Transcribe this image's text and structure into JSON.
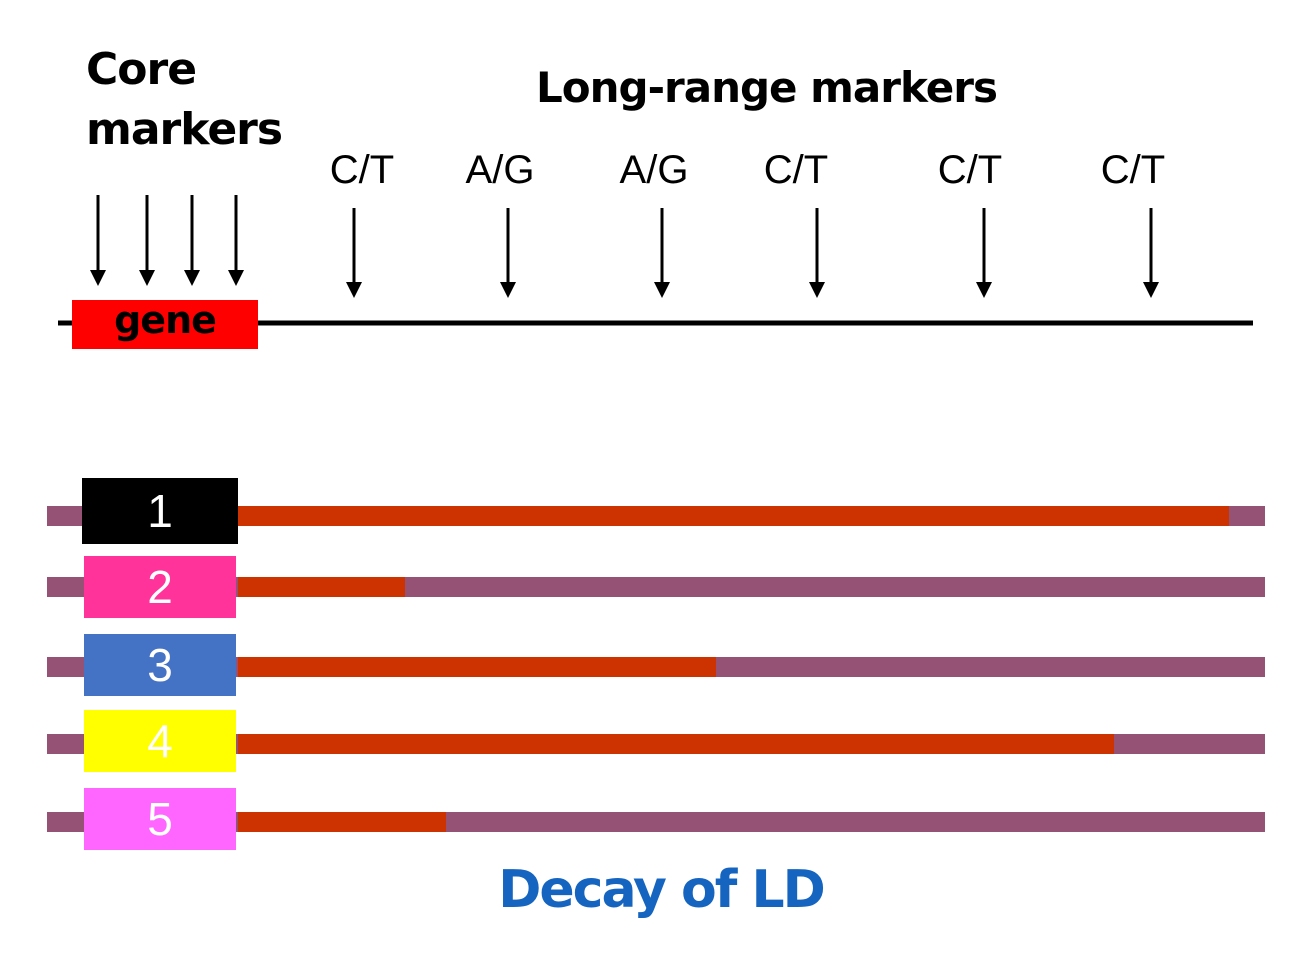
{
  "labels": {
    "core_markers": "Core markers",
    "long_range_markers": "Long-range markers",
    "gene": "gene",
    "caption": "Decay of LD"
  },
  "long_range_alleles": [
    "C/T",
    "A/G",
    "A/G",
    "C/T",
    "C/T",
    "C/T"
  ],
  "haplotypes": [
    {
      "label": "1",
      "box_color": "#000000",
      "conserved_fraction": 0.965
    },
    {
      "label": "2",
      "box_color": "#ff3399",
      "conserved_fraction": 0.163
    },
    {
      "label": "3",
      "box_color": "#4472c4",
      "conserved_fraction": 0.465
    },
    {
      "label": "4",
      "box_color": "#ffff00",
      "conserved_fraction": 0.853
    },
    {
      "label": "5",
      "box_color": "#ff66ff",
      "conserved_fraction": 0.203
    }
  ],
  "colors": {
    "chromosome_line": "#000000",
    "gene_fill": "#ff0000",
    "conserved_segment": "#cc3300",
    "decayed_segment": "#955275",
    "caption": "#1565c0"
  }
}
